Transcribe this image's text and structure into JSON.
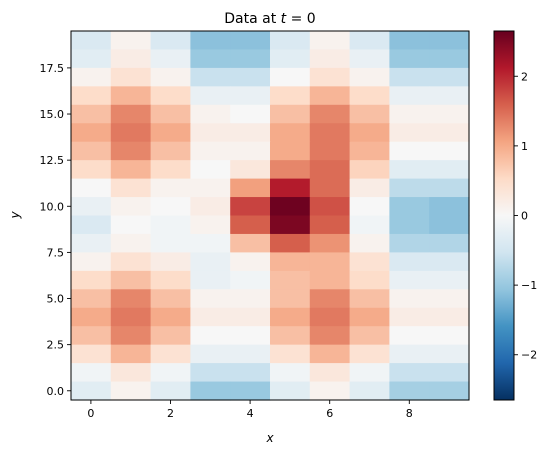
{
  "chart_data": {
    "type": "heatmap",
    "title_prefix": "Data at ",
    "title_math": "t",
    "title_suffix": " = 0",
    "xlabel": "x",
    "ylabel": "y",
    "colormap": "RdBu_r",
    "vmin": -2.65,
    "vmax": 2.65,
    "x_edges": [
      -0.5,
      9.5
    ],
    "y_edges": [
      -0.5,
      19.5
    ],
    "xticks": [
      0,
      2,
      4,
      6,
      8
    ],
    "xtick_labels": [
      "0",
      "2",
      "4",
      "6",
      "8"
    ],
    "yticks": [
      0.0,
      2.5,
      5.0,
      7.5,
      10.0,
      12.5,
      15.0,
      17.5
    ],
    "ytick_labels": [
      "0.0",
      "2.5",
      "5.0",
      "7.5",
      "10.0",
      "12.5",
      "15.0",
      "17.5"
    ],
    "colorbar_ticks": [
      -2,
      -1,
      0,
      1,
      2
    ],
    "colorbar_tick_labels": [
      "−2",
      "−1",
      "0",
      "1",
      "2"
    ],
    "rows_top_to_bottom": [
      [
        -0.4,
        0.1,
        -0.4,
        -1.1,
        -1.1,
        -0.4,
        0.1,
        -0.4,
        -1.1,
        -1.1
      ],
      [
        -0.3,
        0.2,
        -0.2,
        -1.0,
        -1.0,
        -0.3,
        0.2,
        -0.2,
        -1.0,
        -1.0
      ],
      [
        0.1,
        0.4,
        0.1,
        -0.6,
        -0.6,
        0.0,
        0.4,
        0.1,
        -0.6,
        -0.6
      ],
      [
        0.5,
        0.9,
        0.5,
        -0.2,
        -0.2,
        0.5,
        0.9,
        0.5,
        -0.2,
        -0.2
      ],
      [
        0.8,
        1.3,
        0.8,
        0.1,
        0.0,
        0.8,
        1.3,
        0.8,
        0.1,
        0.1
      ],
      [
        1.0,
        1.4,
        1.0,
        0.2,
        0.2,
        1.0,
        1.4,
        1.0,
        0.2,
        0.2
      ],
      [
        0.8,
        1.3,
        0.8,
        0.1,
        0.1,
        1.0,
        1.4,
        0.9,
        0.0,
        0.0
      ],
      [
        0.5,
        0.9,
        0.5,
        0.0,
        0.3,
        1.3,
        1.5,
        0.6,
        -0.3,
        -0.3
      ],
      [
        0.0,
        0.4,
        0.1,
        0.1,
        1.1,
        2.1,
        1.5,
        0.2,
        -0.7,
        -0.7
      ],
      [
        -0.2,
        0.1,
        0.0,
        0.2,
        1.8,
        2.6,
        1.7,
        0.0,
        -1.0,
        -1.1
      ],
      [
        -0.4,
        0.0,
        -0.1,
        0.1,
        1.6,
        2.5,
        1.6,
        -0.1,
        -1.0,
        -1.1
      ],
      [
        -0.2,
        0.1,
        -0.1,
        -0.1,
        0.8,
        1.6,
        1.2,
        0.1,
        -0.8,
        -0.8
      ],
      [
        0.1,
        0.4,
        0.2,
        -0.2,
        0.1,
        0.9,
        0.9,
        0.4,
        -0.4,
        -0.4
      ],
      [
        0.5,
        0.8,
        0.5,
        -0.2,
        -0.1,
        0.8,
        0.9,
        0.5,
        -0.2,
        -0.2
      ],
      [
        0.8,
        1.3,
        0.8,
        0.1,
        0.1,
        0.8,
        1.3,
        0.8,
        0.1,
        0.1
      ],
      [
        1.0,
        1.4,
        1.0,
        0.2,
        0.2,
        1.0,
        1.4,
        1.0,
        0.2,
        0.2
      ],
      [
        0.8,
        1.3,
        0.8,
        0.0,
        0.0,
        0.8,
        1.3,
        0.8,
        0.0,
        0.0
      ],
      [
        0.4,
        0.9,
        0.4,
        -0.2,
        -0.2,
        0.4,
        0.9,
        0.4,
        -0.2,
        -0.2
      ],
      [
        -0.1,
        0.3,
        -0.1,
        -0.6,
        -0.6,
        -0.1,
        0.3,
        -0.1,
        -0.6,
        -0.6
      ],
      [
        -0.3,
        0.1,
        -0.3,
        -1.0,
        -1.0,
        -0.3,
        0.1,
        -0.3,
        -0.9,
        -0.9
      ]
    ]
  }
}
